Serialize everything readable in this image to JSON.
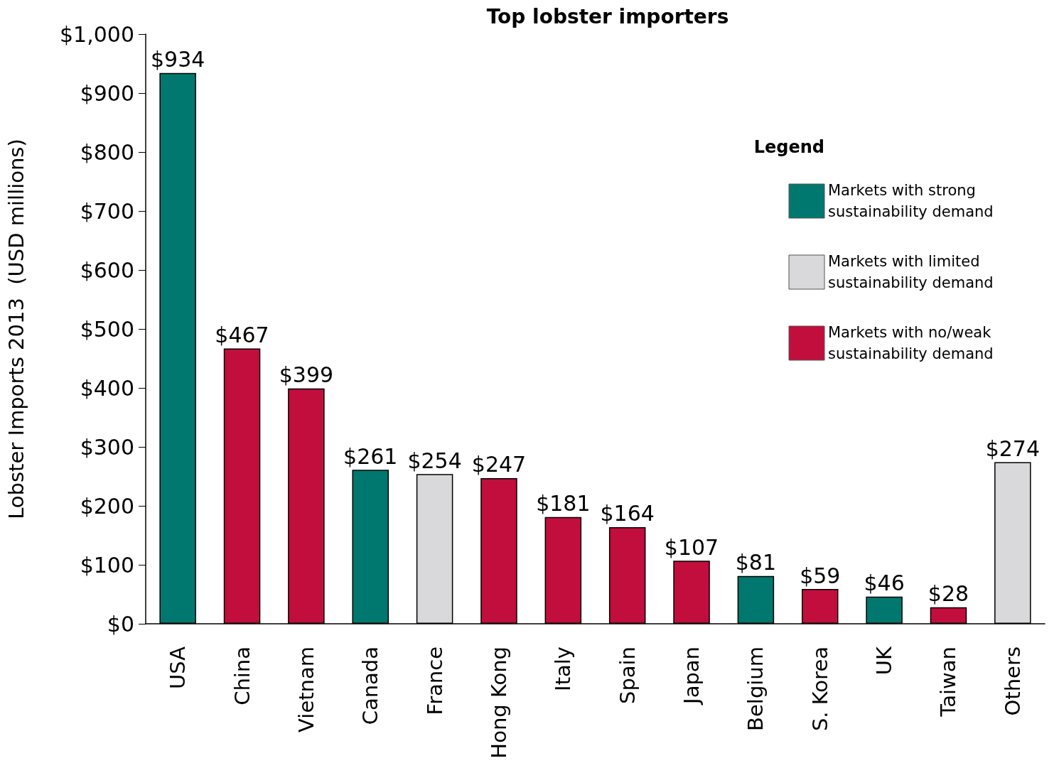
{
  "chart_data": {
    "type": "bar",
    "title": "Top lobster importers",
    "ylabel": "Lobster Imports 2013  (USD millions)",
    "legend_title": "Legend",
    "legend": "right",
    "categories": [
      "USA",
      "China",
      "Vietnam",
      "Canada",
      "France",
      "Hong Kong",
      "Italy",
      "Spain",
      "Japan",
      "Belgium",
      "S. Korea",
      "UK",
      "Taiwan",
      "Others"
    ],
    "series": [
      {
        "name": "Markets with strong sustainability demand",
        "color": "#00786f",
        "values": [
          934,
          null,
          null,
          261,
          null,
          null,
          null,
          null,
          null,
          81,
          null,
          46,
          null,
          null
        ],
        "value_labels": [
          "$934",
          null,
          null,
          "$261",
          null,
          null,
          null,
          null,
          null,
          "$81",
          null,
          "$46",
          null,
          null
        ]
      },
      {
        "name": "Markets with limited sustainability demand",
        "color": "#d9d9db",
        "values": [
          null,
          null,
          null,
          null,
          254,
          null,
          null,
          null,
          null,
          null,
          null,
          null,
          null,
          274
        ],
        "value_labels": [
          null,
          null,
          null,
          null,
          "$254",
          null,
          null,
          null,
          null,
          null,
          null,
          null,
          null,
          "$274"
        ]
      },
      {
        "name": "Markets with no/weak sustainability demand",
        "color": "#c20e3c",
        "values": [
          null,
          467,
          399,
          null,
          null,
          247,
          181,
          164,
          107,
          null,
          59,
          null,
          28,
          null
        ],
        "value_labels": [
          null,
          "$467",
          "$399",
          null,
          null,
          "$247",
          "$181",
          "$164",
          "$107",
          null,
          "$59",
          null,
          "$28",
          null
        ]
      }
    ],
    "ylim": [
      0,
      1000
    ],
    "yticks": [
      {
        "value": 0,
        "label": "$0"
      },
      {
        "value": 100,
        "label": "$100"
      },
      {
        "value": 200,
        "label": "$200"
      },
      {
        "value": 300,
        "label": "$300"
      },
      {
        "value": 400,
        "label": "$400"
      },
      {
        "value": 500,
        "label": "$500"
      },
      {
        "value": 600,
        "label": "$600"
      },
      {
        "value": 700,
        "label": "$700"
      },
      {
        "value": 800,
        "label": "$800"
      },
      {
        "value": 900,
        "label": "$900"
      },
      {
        "value": 1000,
        "label": "$1,000"
      }
    ]
  }
}
